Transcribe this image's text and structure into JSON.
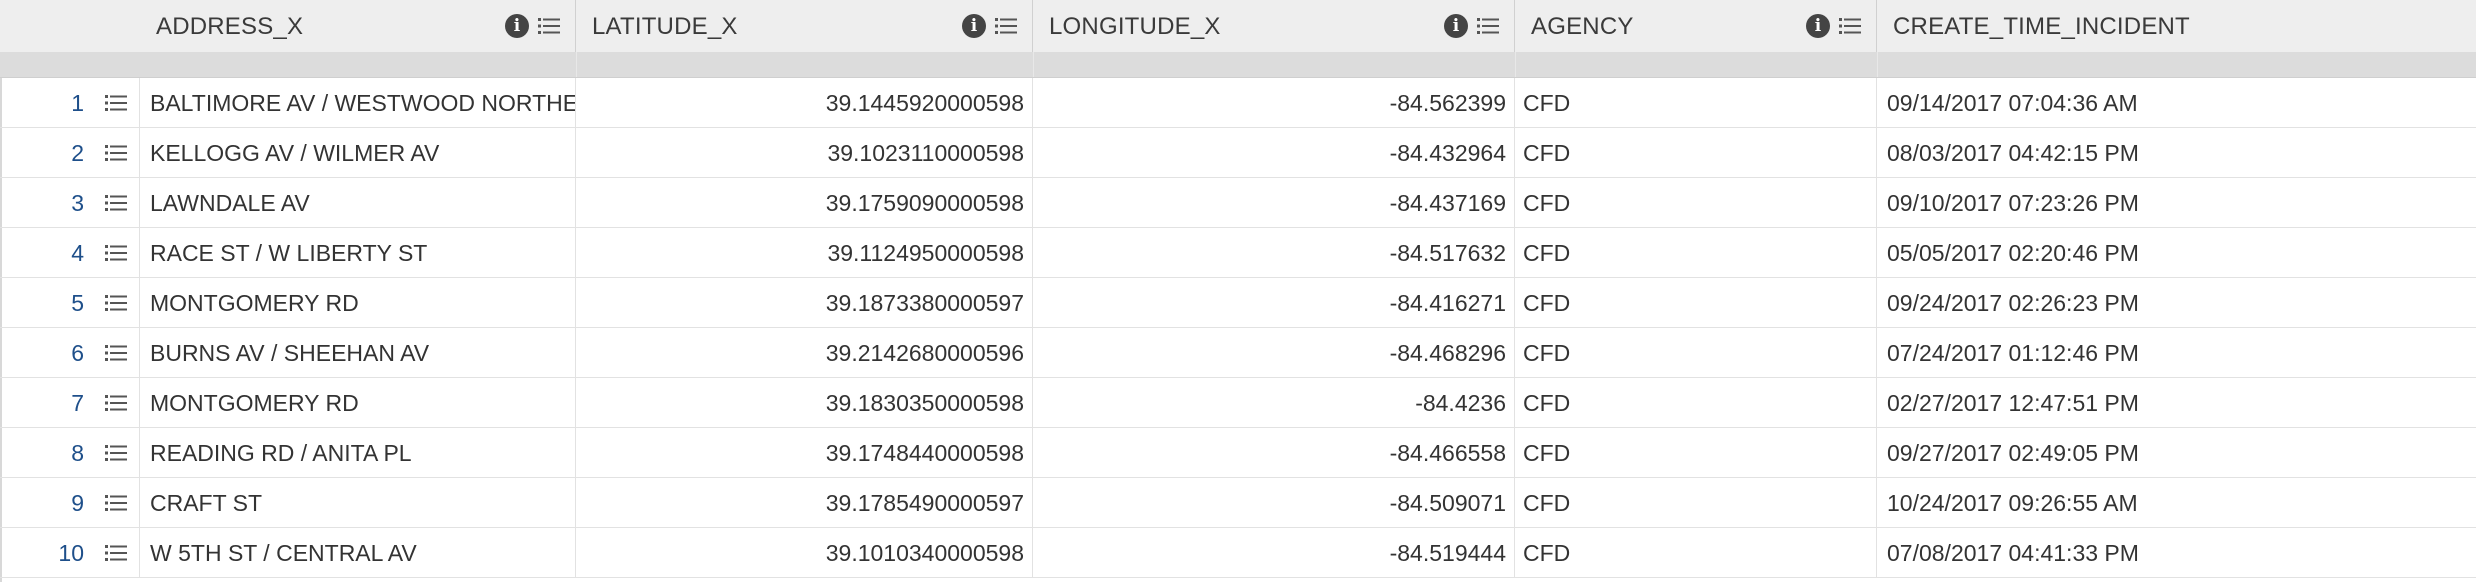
{
  "columns": [
    {
      "key": "address",
      "label": "ADDRESS_X"
    },
    {
      "key": "latitude",
      "label": "LATITUDE_X"
    },
    {
      "key": "longitude",
      "label": "LONGITUDE_X"
    },
    {
      "key": "agency",
      "label": "AGENCY"
    },
    {
      "key": "create_time",
      "label": "CREATE_TIME_INCIDENT"
    }
  ],
  "header_icons": {
    "info": "info-icon",
    "menu": "column-menu-icon"
  },
  "rows": [
    {
      "num": "1",
      "address": "BALTIMORE AV / WESTWOOD NORTHERN BL",
      "latitude": "39.1445920000598",
      "longitude": "-84.562399",
      "agency": "CFD",
      "create_time": "09/14/2017 07:04:36 AM"
    },
    {
      "num": "2",
      "address": "KELLOGG AV / WILMER AV",
      "latitude": "39.1023110000598",
      "longitude": "-84.432964",
      "agency": "CFD",
      "create_time": "08/03/2017 04:42:15 PM"
    },
    {
      "num": "3",
      "address": "LAWNDALE AV",
      "latitude": "39.1759090000598",
      "longitude": "-84.437169",
      "agency": "CFD",
      "create_time": "09/10/2017 07:23:26 PM"
    },
    {
      "num": "4",
      "address": "RACE ST / W LIBERTY ST",
      "latitude": "39.1124950000598",
      "longitude": "-84.517632",
      "agency": "CFD",
      "create_time": "05/05/2017 02:20:46 PM"
    },
    {
      "num": "5",
      "address": "MONTGOMERY RD",
      "latitude": "39.1873380000597",
      "longitude": "-84.416271",
      "agency": "CFD",
      "create_time": "09/24/2017 02:26:23 PM"
    },
    {
      "num": "6",
      "address": "BURNS AV / SHEEHAN AV",
      "latitude": "39.2142680000596",
      "longitude": "-84.468296",
      "agency": "CFD",
      "create_time": "07/24/2017 01:12:46 PM"
    },
    {
      "num": "7",
      "address": "MONTGOMERY RD",
      "latitude": "39.1830350000598",
      "longitude": "-84.4236",
      "agency": "CFD",
      "create_time": "02/27/2017 12:47:51 PM"
    },
    {
      "num": "8",
      "address": "READING RD / ANITA PL",
      "latitude": "39.1748440000598",
      "longitude": "-84.466558",
      "agency": "CFD",
      "create_time": "09/27/2017 02:49:05 PM"
    },
    {
      "num": "9",
      "address": "CRAFT ST",
      "latitude": "39.1785490000597",
      "longitude": "-84.509071",
      "agency": "CFD",
      "create_time": "10/24/2017 09:26:55 AM"
    },
    {
      "num": "10",
      "address": "W 5TH ST / CENTRAL AV",
      "latitude": "39.1010340000598",
      "longitude": "-84.519444",
      "agency": "CFD",
      "create_time": "07/08/2017 04:41:33 PM"
    }
  ]
}
